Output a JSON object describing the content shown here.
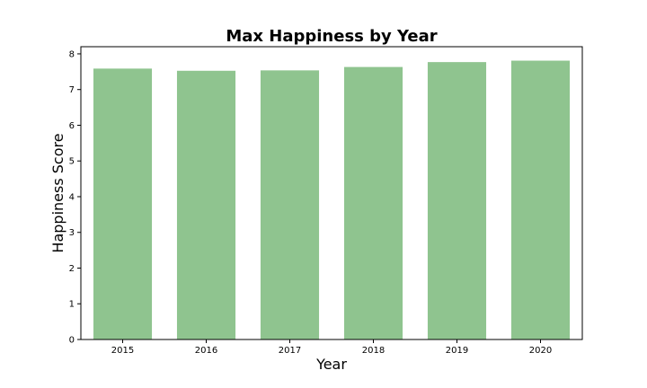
{
  "chart_data": {
    "type": "bar",
    "title": "Max Happiness by Year",
    "xlabel": "Year",
    "ylabel": "Happiness Score",
    "categories": [
      "2015",
      "2016",
      "2017",
      "2018",
      "2019",
      "2020"
    ],
    "values": [
      7.587,
      7.526,
      7.537,
      7.632,
      7.769,
      7.809
    ],
    "ylim": [
      0,
      8.2
    ],
    "yticks": [
      0,
      1,
      2,
      3,
      4,
      5,
      6,
      7,
      8
    ],
    "bar_color": "#8fc48f",
    "grid": false,
    "legend": "none"
  }
}
